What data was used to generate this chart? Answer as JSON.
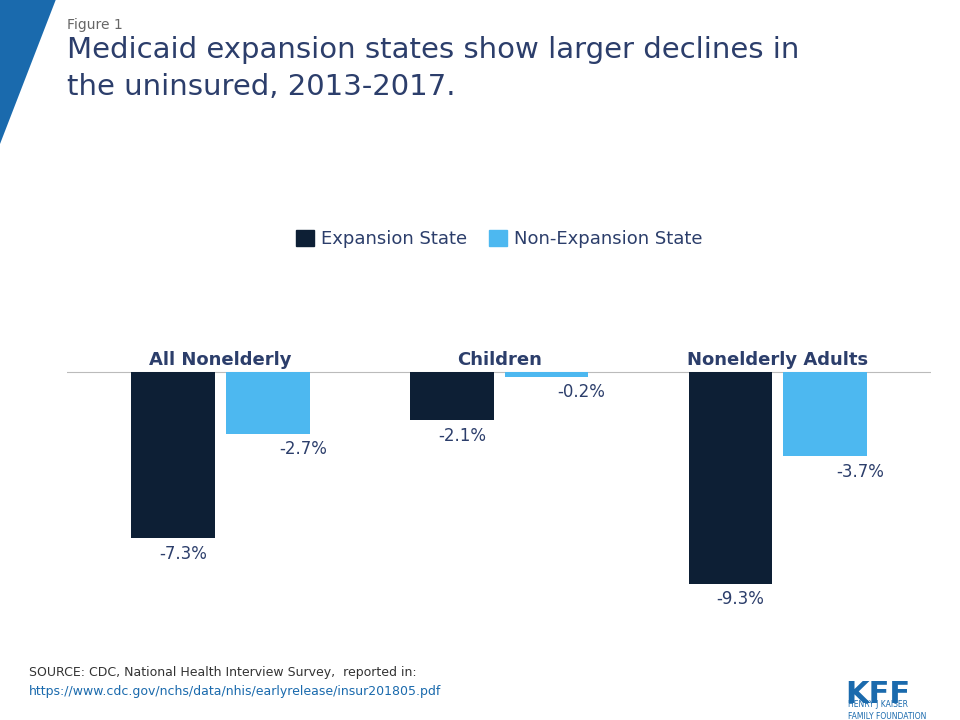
{
  "title_line1": "Medicaid expansion states show larger declines in",
  "title_line2": "the uninsured, 2013-2017.",
  "figure_label": "Figure 1",
  "categories": [
    "All Nonelderly",
    "Children",
    "Nonelderly Adults"
  ],
  "expansion_values": [
    -7.3,
    -2.1,
    -9.3
  ],
  "nonexpansion_values": [
    -2.7,
    -0.2,
    -3.7
  ],
  "expansion_color": "#0d1f35",
  "nonexpansion_color": "#4db8f0",
  "expansion_label": "Expansion State",
  "nonexpansion_label": "Non-Expansion State",
  "bar_width": 0.3,
  "ylim": [
    -11.5,
    1.8
  ],
  "source_text": "SOURCE: CDC, National Health Interview Survey,  reported in:",
  "source_url": "https://www.cdc.gov/nchs/data/nhis/earlyrelease/insur201805.pdf",
  "label_color": "#2c3e6b",
  "title_color": "#2c3e6b",
  "bg_color": "#ffffff",
  "accent_blue": "#1a6aad"
}
